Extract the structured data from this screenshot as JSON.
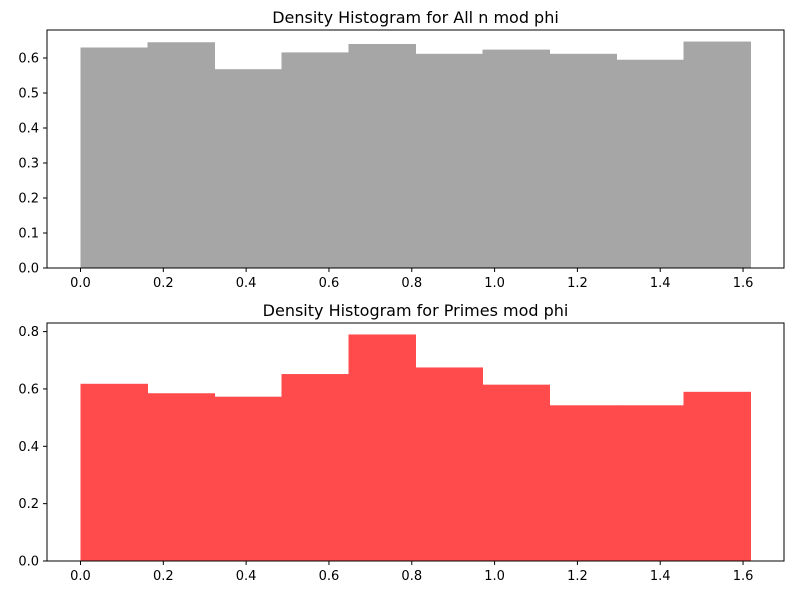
{
  "chart_data": [
    {
      "type": "bar",
      "title": "Density Histogram for All n mod phi",
      "xlabel": "",
      "ylabel": "",
      "color": "#a6a6a6",
      "bin_edges": [
        0.0,
        0.1618,
        0.3236,
        0.4854,
        0.6472,
        0.809,
        0.9708,
        1.1326,
        1.2944,
        1.4562,
        1.618
      ],
      "values": [
        0.63,
        0.645,
        0.568,
        0.616,
        0.64,
        0.612,
        0.624,
        0.612,
        0.595,
        0.647
      ],
      "xlim": [
        -0.0809,
        1.6989
      ],
      "ylim": [
        0,
        0.68
      ],
      "xticks": [
        0.0,
        0.2,
        0.4,
        0.6,
        0.8,
        1.0,
        1.2,
        1.4,
        1.6
      ],
      "xtick_labels": [
        "0.0",
        "0.2",
        "0.4",
        "0.6",
        "0.8",
        "1.0",
        "1.2",
        "1.4",
        "1.6"
      ],
      "yticks": [
        0.0,
        0.1,
        0.2,
        0.3,
        0.4,
        0.5,
        0.6
      ],
      "ytick_labels": [
        "0.0",
        "0.1",
        "0.2",
        "0.3",
        "0.4",
        "0.5",
        "0.6"
      ]
    },
    {
      "type": "bar",
      "title": "Density Histogram for Primes mod phi",
      "xlabel": "",
      "ylabel": "",
      "color": "#ff4b4b",
      "bin_edges": [
        0.0,
        0.1618,
        0.3236,
        0.4854,
        0.6472,
        0.809,
        0.9708,
        1.1326,
        1.2944,
        1.4562,
        1.618
      ],
      "values": [
        0.618,
        0.585,
        0.573,
        0.652,
        0.79,
        0.675,
        0.615,
        0.543,
        0.543,
        0.59
      ],
      "xlim": [
        -0.0809,
        1.6989
      ],
      "ylim": [
        0,
        0.83
      ],
      "xticks": [
        0.0,
        0.2,
        0.4,
        0.6,
        0.8,
        1.0,
        1.2,
        1.4,
        1.6
      ],
      "xtick_labels": [
        "0.0",
        "0.2",
        "0.4",
        "0.6",
        "0.8",
        "1.0",
        "1.2",
        "1.4",
        "1.6"
      ],
      "yticks": [
        0.0,
        0.2,
        0.4,
        0.6,
        0.8
      ],
      "ytick_labels": [
        "0.0",
        "0.2",
        "0.4",
        "0.6",
        "0.8"
      ]
    }
  ]
}
